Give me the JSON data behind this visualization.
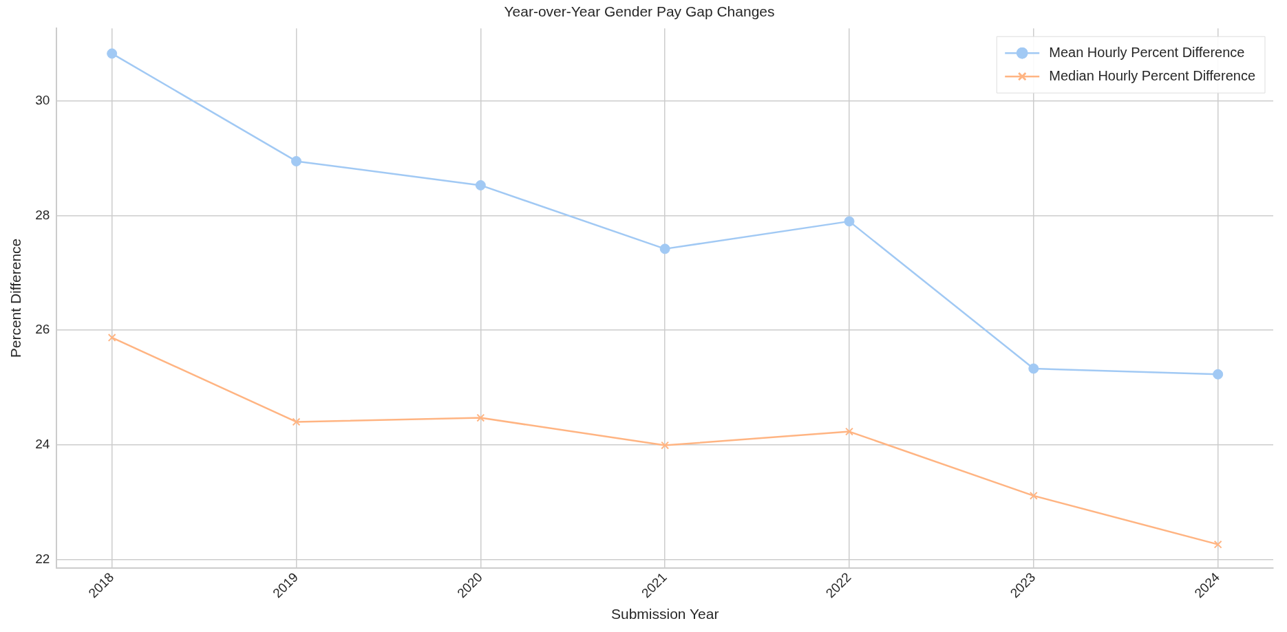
{
  "chart_data": {
    "type": "line",
    "title": "Year-over-Year Gender Pay Gap Changes",
    "xlabel": "Submission Year",
    "ylabel": "Percent Difference",
    "x": [
      2018,
      2019,
      2020,
      2021,
      2022,
      2023,
      2024
    ],
    "xlim": [
      2017.7,
      2024.3
    ],
    "xticks": [
      2018,
      2019,
      2020,
      2021,
      2022,
      2023,
      2024
    ],
    "ylim": [
      21.85,
      31.27
    ],
    "yticks": [
      22,
      24,
      26,
      28,
      30
    ],
    "series": [
      {
        "name": "Mean Hourly Percent Difference",
        "color": "#a1c9f4",
        "marker": "circle",
        "values": [
          30.83,
          28.95,
          28.53,
          27.42,
          27.9,
          25.33,
          25.23
        ]
      },
      {
        "name": "Median Hourly Percent Difference",
        "color": "#ffb482",
        "marker": "cross",
        "values": [
          25.87,
          24.4,
          24.47,
          23.99,
          24.23,
          23.11,
          22.26
        ]
      }
    ],
    "grid": true,
    "legend": "top right",
    "line_style": "solid"
  }
}
